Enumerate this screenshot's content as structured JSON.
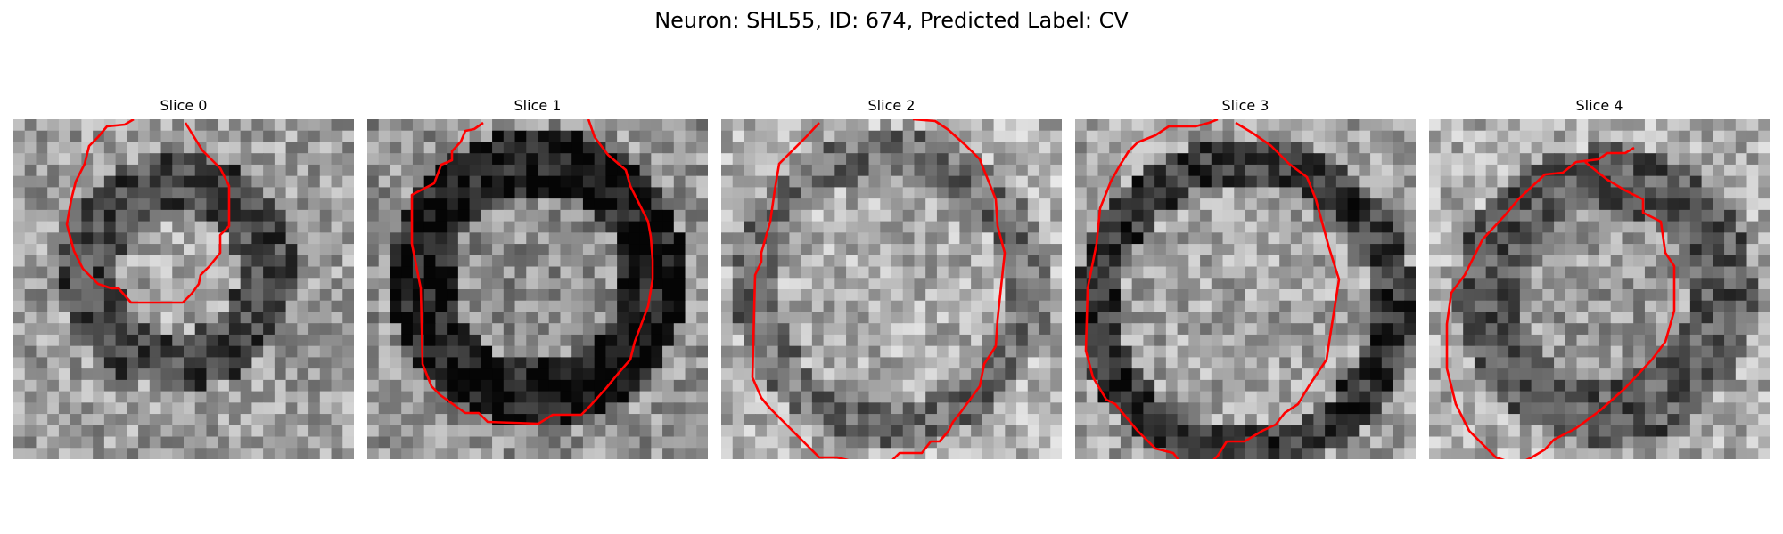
{
  "title": "Neuron: SHL55, ID: 674, Predicted Label: CV",
  "panels": [
    {
      "label": "Slice 0"
    },
    {
      "label": "Slice 1"
    },
    {
      "label": "Slice 2"
    },
    {
      "label": "Slice 3"
    },
    {
      "label": "Slice 4"
    }
  ],
  "colors": {
    "contour": "#ff0000",
    "background": "#ffffff"
  }
}
